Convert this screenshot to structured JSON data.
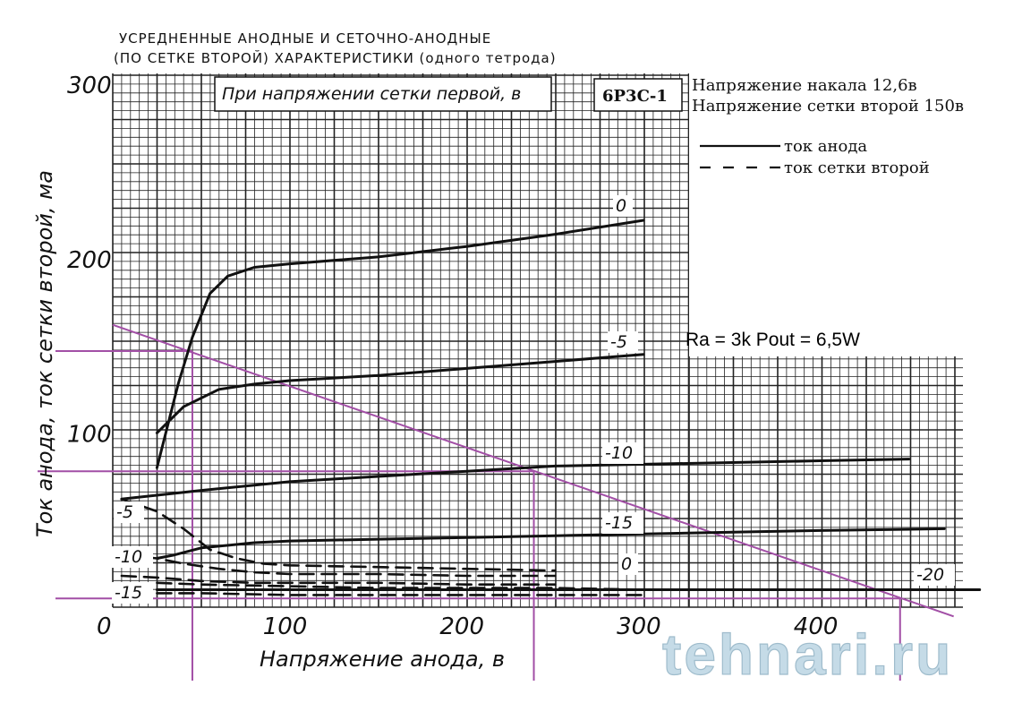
{
  "title": {
    "line1": "УСРЕДНЕННЫЕ АНОДНЫЕ И СЕТОЧНО-АНОДНЫЕ",
    "line2": "(ПО СЕТКЕ ВТОРОЙ) ХАРАКТЕРИСТИКИ (одного тетрода)"
  },
  "box_label": "При напряжении сетки первой, в",
  "tube_name": "6Р3С-1",
  "conditions": {
    "filament": "Напряжение накала 12,6в",
    "screen": "Напряжение сетки второй 150в"
  },
  "legend": {
    "solid": "ток анода",
    "dashed": "ток сетки второй"
  },
  "load_line_label": "Ra = 3k  Pout = 6,5W",
  "watermark": "tehnari.ru",
  "colors": {
    "load_line": "#a24fa6",
    "curves": "#111111",
    "grid": "#222222"
  },
  "chart_data": {
    "type": "line",
    "xlabel": "Напряжение анода, в",
    "ylabel": "Ток анода, ток сетки второй, ма",
    "xlim": [
      0,
      480
    ],
    "ylim": [
      0,
      300
    ],
    "x_ticks": [
      "0",
      "100",
      "200",
      "300",
      "400"
    ],
    "y_ticks": [
      "100",
      "200",
      "300"
    ],
    "grid": true,
    "series": [
      {
        "name": "0",
        "kind": "anode",
        "x": [
          25,
          37,
          45,
          55,
          65,
          80,
          100,
          150,
          200,
          250,
          300
        ],
        "y": [
          80,
          128,
          155,
          180,
          190,
          195,
          197,
          201,
          207,
          214,
          222
        ]
      },
      {
        "name": "-5",
        "kind": "anode",
        "x": [
          25,
          40,
          60,
          80,
          100,
          150,
          200,
          250,
          300
        ],
        "y": [
          100,
          115,
          125,
          128,
          130,
          133,
          137,
          141,
          145
        ]
      },
      {
        "name": "-10",
        "kind": "anode",
        "x": [
          5,
          50,
          100,
          150,
          200,
          250,
          300,
          350,
          400,
          450
        ],
        "y": [
          62,
          67,
          72,
          75,
          78,
          81,
          82,
          83,
          84,
          85
        ]
      },
      {
        "name": "-15",
        "kind": "anode",
        "x": [
          25,
          35,
          50,
          80,
          100,
          150,
          200,
          250,
          300,
          350,
          400,
          470
        ],
        "y": [
          28,
          30,
          34,
          37,
          38,
          39,
          40,
          41,
          42,
          43,
          44,
          45
        ]
      },
      {
        "name": "-20",
        "kind": "anode",
        "x": [
          25,
          50,
          100,
          200,
          300,
          400,
          490
        ],
        "y": [
          10,
          10,
          10,
          10,
          10,
          10,
          10
        ]
      },
      {
        "name": "-5",
        "kind": "screen",
        "x": [
          5,
          25,
          40,
          55,
          70,
          85,
          100,
          150,
          200,
          250
        ],
        "y": [
          62,
          55,
          45,
          33,
          28,
          25,
          24,
          23,
          22,
          21
        ]
      },
      {
        "name": "-10",
        "kind": "screen",
        "x": [
          5,
          25,
          40,
          60,
          80,
          100,
          150,
          200,
          250
        ],
        "y": [
          30,
          28,
          25,
          22,
          20,
          19,
          19,
          18,
          18
        ]
      },
      {
        "name": "-15",
        "kind": "screen",
        "x": [
          5,
          25,
          50,
          80,
          100,
          150,
          200,
          250
        ],
        "y": [
          18,
          17,
          15,
          14,
          14,
          14,
          13,
          13
        ]
      },
      {
        "name": "0",
        "kind": "screen",
        "x": [
          25,
          50,
          100,
          150,
          200,
          250,
          300
        ],
        "y": [
          14,
          13,
          12,
          11,
          11,
          11,
          10
        ]
      },
      {
        "name": "-20",
        "kind": "screen",
        "x": [
          25,
          50,
          100,
          150,
          200,
          250,
          300
        ],
        "y": [
          8,
          8,
          7,
          7,
          7,
          7,
          7
        ]
      }
    ],
    "load_line": {
      "x": [
        0,
        450
      ],
      "y": [
        162,
        5
      ]
    },
    "operating_points": [
      {
        "x": 45,
        "y": 147
      },
      {
        "x": 238,
        "y": 78
      },
      {
        "x": 445,
        "y": 5
      }
    ]
  }
}
